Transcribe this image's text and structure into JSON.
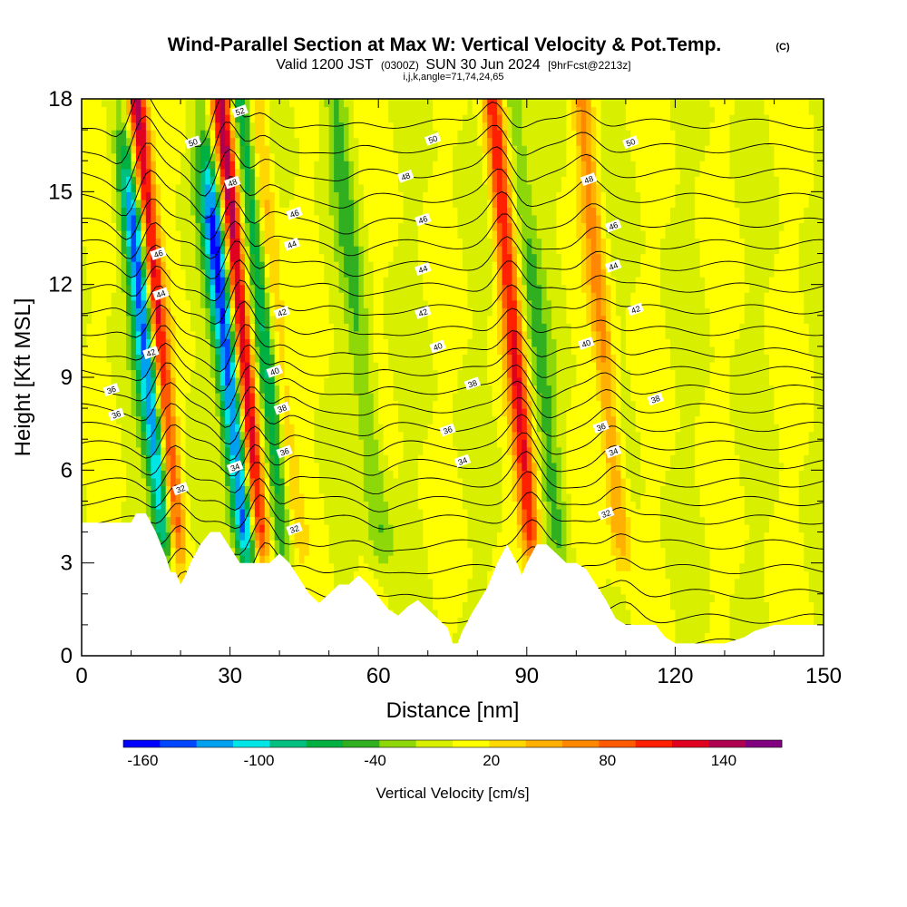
{
  "chart_data": {
    "type": "heatmap",
    "title": "Wind-Parallel Section at Max W: Vertical Velocity & Pot.Temp.",
    "title_mark": "(C)",
    "subtitle_parts": [
      "Valid 1200 JST",
      "(0300Z)",
      "SUN 30 Jun 2024",
      "[9hrFcst@2213z]"
    ],
    "subtitle2": "i,j,k,angle=71,74,24,65",
    "xlabel": "Distance [nm]",
    "ylabel": "Height [Kft MSL]",
    "xlim": [
      0,
      150
    ],
    "ylim": [
      0,
      18
    ],
    "x_ticks": [
      0,
      30,
      60,
      90,
      120,
      150
    ],
    "y_ticks": [
      0,
      3,
      6,
      9,
      12,
      15,
      18
    ],
    "colorbar": {
      "label": "Vertical Velocity [cm/s]",
      "tick_labels": [
        "-160",
        "-100",
        "-40",
        "20",
        "80",
        "140"
      ],
      "tick_values": [
        -160,
        -100,
        -40,
        20,
        80,
        140
      ],
      "range": [
        -170,
        170
      ],
      "colors": [
        "#0000ff",
        "#0046ff",
        "#00a0f0",
        "#00e6e6",
        "#00c080",
        "#00b040",
        "#30b020",
        "#8ed80a",
        "#d8f000",
        "#ffff00",
        "#ffd800",
        "#ffb000",
        "#ff8800",
        "#ff5a00",
        "#ff2000",
        "#e00020",
        "#b00050",
        "#800080"
      ]
    },
    "updrafts": [
      {
        "x": 16,
        "w": 160
      },
      {
        "x": 33,
        "w": 150
      },
      {
        "x": 40,
        "w": 60
      },
      {
        "x": 88,
        "w": 110
      },
      {
        "x": 106,
        "w": 60
      }
    ],
    "downdrafts": [
      {
        "x": 14,
        "w": -165
      },
      {
        "x": 30,
        "w": -160
      },
      {
        "x": 38,
        "w": -80
      },
      {
        "x": 57,
        "w": -40
      },
      {
        "x": 93,
        "w": -40
      }
    ],
    "theta_labels": [
      {
        "x": 6,
        "y": 8.6,
        "text": "36"
      },
      {
        "x": 7,
        "y": 7.8,
        "text": "36"
      },
      {
        "x": 20,
        "y": 5.4,
        "text": "32"
      },
      {
        "x": 14,
        "y": 9.8,
        "text": "42"
      },
      {
        "x": 16,
        "y": 11.7,
        "text": "44"
      },
      {
        "x": 15.5,
        "y": 13.0,
        "text": "46"
      },
      {
        "x": 22.5,
        "y": 16.6,
        "text": "50"
      },
      {
        "x": 31,
        "y": 6.1,
        "text": "34"
      },
      {
        "x": 30.5,
        "y": 15.3,
        "text": "48"
      },
      {
        "x": 32,
        "y": 17.6,
        "text": "52"
      },
      {
        "x": 43,
        "y": 14.3,
        "text": "46"
      },
      {
        "x": 42.5,
        "y": 13.3,
        "text": "44"
      },
      {
        "x": 40.5,
        "y": 11.1,
        "text": "42"
      },
      {
        "x": 39,
        "y": 9.2,
        "text": "40"
      },
      {
        "x": 40.5,
        "y": 8.0,
        "text": "38"
      },
      {
        "x": 41,
        "y": 6.6,
        "text": "36"
      },
      {
        "x": 43,
        "y": 4.1,
        "text": "32"
      },
      {
        "x": 71,
        "y": 16.7,
        "text": "50"
      },
      {
        "x": 65.5,
        "y": 15.5,
        "text": "48"
      },
      {
        "x": 69,
        "y": 14.1,
        "text": "46"
      },
      {
        "x": 69,
        "y": 12.5,
        "text": "44"
      },
      {
        "x": 69,
        "y": 11.1,
        "text": "42"
      },
      {
        "x": 72,
        "y": 10.0,
        "text": "40"
      },
      {
        "x": 79,
        "y": 8.8,
        "text": "38"
      },
      {
        "x": 74,
        "y": 7.3,
        "text": "36"
      },
      {
        "x": 77,
        "y": 6.3,
        "text": "34"
      },
      {
        "x": 111,
        "y": 16.6,
        "text": "50"
      },
      {
        "x": 102.5,
        "y": 15.4,
        "text": "48"
      },
      {
        "x": 107.5,
        "y": 13.9,
        "text": "46"
      },
      {
        "x": 107.5,
        "y": 12.6,
        "text": "44"
      },
      {
        "x": 112,
        "y": 11.2,
        "text": "42"
      },
      {
        "x": 102,
        "y": 10.1,
        "text": "40"
      },
      {
        "x": 116,
        "y": 8.3,
        "text": "38"
      },
      {
        "x": 105,
        "y": 7.4,
        "text": "36"
      },
      {
        "x": 107.5,
        "y": 6.6,
        "text": "34"
      },
      {
        "x": 106,
        "y": 4.6,
        "text": "32"
      }
    ],
    "terrain": [
      [
        0,
        4.3
      ],
      [
        5,
        4.3
      ],
      [
        10,
        4.3
      ],
      [
        11,
        4.6
      ],
      [
        13,
        4.6
      ],
      [
        14,
        4.3
      ],
      [
        15,
        4.0
      ],
      [
        16,
        3.6
      ],
      [
        17,
        3.2
      ],
      [
        18,
        2.7
      ],
      [
        19,
        2.7
      ],
      [
        20,
        2.3
      ],
      [
        21,
        2.6
      ],
      [
        22,
        3.0
      ],
      [
        24,
        3.6
      ],
      [
        26,
        4.0
      ],
      [
        28,
        4.0
      ],
      [
        30,
        3.5
      ],
      [
        32,
        3.0
      ],
      [
        34,
        3.0
      ],
      [
        36,
        3.0
      ],
      [
        38,
        3.0
      ],
      [
        40,
        3.3
      ],
      [
        42,
        3.0
      ],
      [
        44,
        2.5
      ],
      [
        46,
        2.0
      ],
      [
        48,
        1.7
      ],
      [
        50,
        2.0
      ],
      [
        52,
        2.3
      ],
      [
        54,
        2.3
      ],
      [
        56,
        2.6
      ],
      [
        58,
        2.3
      ],
      [
        60,
        1.9
      ],
      [
        62,
        1.5
      ],
      [
        64,
        1.3
      ],
      [
        66,
        1.6
      ],
      [
        68,
        1.8
      ],
      [
        70,
        1.5
      ],
      [
        72,
        1.2
      ],
      [
        74,
        0.9
      ],
      [
        75,
        0.4
      ],
      [
        76,
        0.4
      ],
      [
        77,
        0.8
      ],
      [
        79,
        1.4
      ],
      [
        82,
        2.2
      ],
      [
        84,
        3.0
      ],
      [
        86,
        3.6
      ],
      [
        88,
        3.0
      ],
      [
        89,
        2.6
      ],
      [
        90,
        3.0
      ],
      [
        92,
        3.6
      ],
      [
        94,
        3.6
      ],
      [
        96,
        3.3
      ],
      [
        98,
        3.0
      ],
      [
        100,
        3.0
      ],
      [
        102,
        2.8
      ],
      [
        104,
        2.3
      ],
      [
        106,
        1.8
      ],
      [
        108,
        1.2
      ],
      [
        110,
        1.0
      ],
      [
        112,
        1.0
      ],
      [
        114,
        1.0
      ],
      [
        116,
        1.0
      ],
      [
        118,
        0.6
      ],
      [
        120,
        0.4
      ],
      [
        130,
        0.4
      ],
      [
        134,
        0.6
      ],
      [
        136,
        0.8
      ],
      [
        140,
        1.0
      ],
      [
        144,
        1.0
      ],
      [
        150,
        1.0
      ]
    ]
  }
}
